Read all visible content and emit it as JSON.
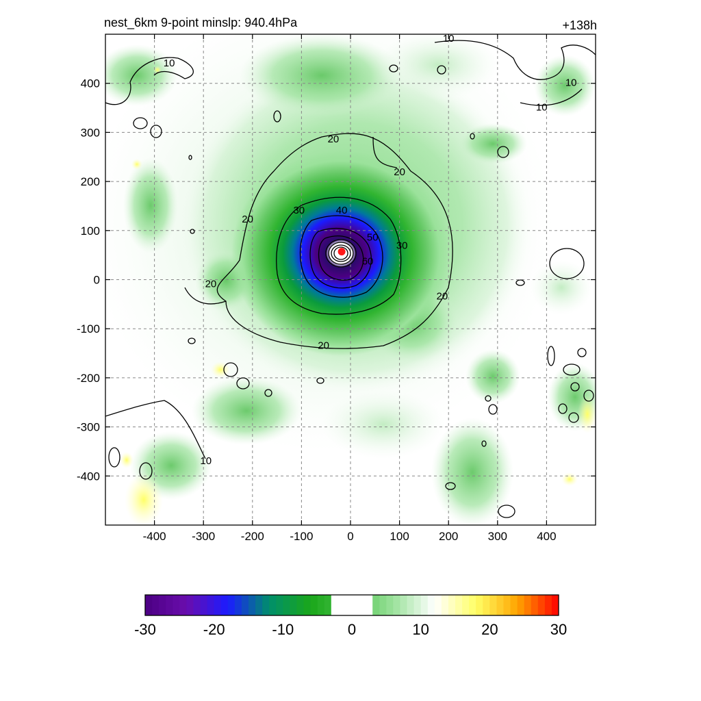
{
  "title_left": "nest_6km  9-point minslp: 940.4hPa",
  "title_right": "+138h",
  "chart_data": {
    "type": "heatmap",
    "title": "nest_6km  9-point minslp: 940.4hPa",
    "forecast_hour_label": "+138h",
    "xlim": [
      -500,
      500
    ],
    "ylim": [
      -500,
      500
    ],
    "x_ticks": [
      -400,
      -300,
      -200,
      -100,
      0,
      100,
      200,
      300,
      400
    ],
    "y_ticks": [
      400,
      300,
      200,
      100,
      0,
      -100,
      -200,
      -300,
      -400
    ],
    "grid": "dashed",
    "center": {
      "x": -18,
      "y": 57
    },
    "contour_levels_labeled": [
      "10",
      "20",
      "30",
      "40",
      "50",
      "60"
    ],
    "contour_labels": [
      {
        "text": "10",
        "x": -370,
        "y": 440
      },
      {
        "text": "10",
        "x": 200,
        "y": 490
      },
      {
        "text": "10",
        "x": 450,
        "y": 400
      },
      {
        "text": "10",
        "x": 390,
        "y": 350
      },
      {
        "text": "20",
        "x": -35,
        "y": 285
      },
      {
        "text": "20",
        "x": 100,
        "y": 218
      },
      {
        "text": "20",
        "x": -210,
        "y": 122
      },
      {
        "text": "20",
        "x": -285,
        "y": -10
      },
      {
        "text": "20",
        "x": 187,
        "y": -35
      },
      {
        "text": "20",
        "x": -55,
        "y": -135
      },
      {
        "text": "30",
        "x": -105,
        "y": 140
      },
      {
        "text": "30",
        "x": 105,
        "y": 68
      },
      {
        "text": "40",
        "x": -18,
        "y": 140
      },
      {
        "text": "50",
        "x": 45,
        "y": 85
      },
      {
        "text": "60",
        "x": 35,
        "y": 36
      },
      {
        "text": "10",
        "x": -295,
        "y": -370
      }
    ],
    "colorbar": {
      "min": -30,
      "max": 30,
      "tick_labels": [
        "-30",
        "-20",
        "-10",
        "0",
        "10",
        "20",
        "30"
      ],
      "colors": [
        "#4b0082",
        "#6a0dad",
        "#1b1bff",
        "#008f6b",
        "#1aa71a",
        "#4dc24d",
        "#9be29b",
        "#ffffff",
        "#ffff66",
        "#ffa500",
        "#ff0000"
      ]
    }
  }
}
